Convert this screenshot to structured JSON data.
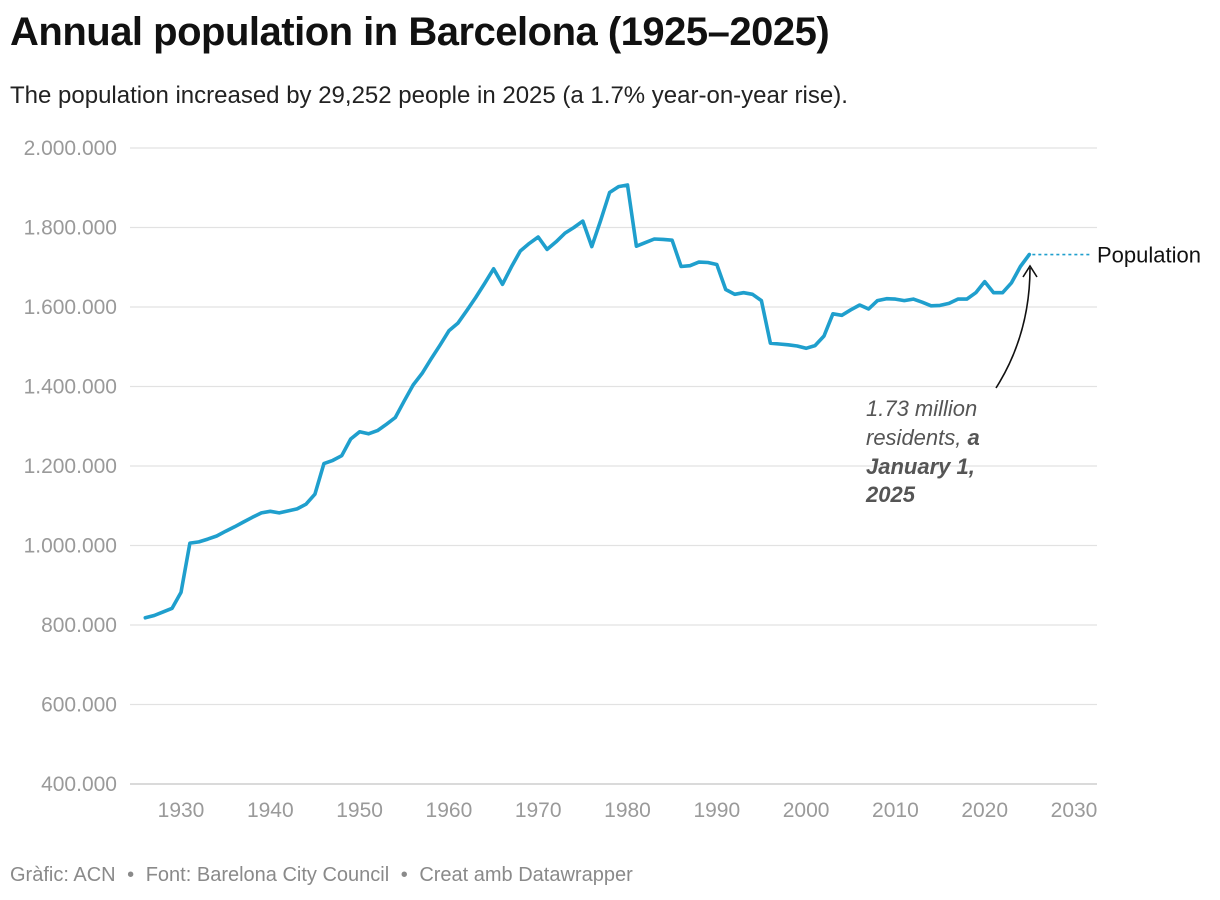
{
  "title": "Annual population in Barcelona (1925–2025)",
  "subtitle": "The population increased by 29,252 people in 2025 (a 1.7% year-on-year rise).",
  "footer": {
    "credit": "Gràfic: ACN",
    "source": "Font: Barelona City Council",
    "tool": "Creat amb Datawrapper",
    "separator": "•"
  },
  "annotation": {
    "line1": "1.73 million",
    "line2_normal": "residents, ",
    "line2_bold": "a",
    "line3": "January 1,",
    "line4": "2025"
  },
  "colors": {
    "line": "#1f9fcd",
    "grid": "#e2e2e2",
    "axis": "#d0d0d0"
  },
  "chart_data": {
    "type": "line",
    "title": "Annual population in Barcelona (1925–2025)",
    "xlim": [
      1923,
      2030
    ],
    "ylim": [
      400000,
      2000000
    ],
    "x_ticks": [
      1930,
      1940,
      1950,
      1960,
      1970,
      1980,
      1990,
      2000,
      2010,
      2020,
      2030
    ],
    "y_ticks": [
      400000,
      600000,
      800000,
      1000000,
      1200000,
      1400000,
      1600000,
      1800000,
      2000000
    ],
    "y_tick_labels": [
      "400.000",
      "600.000",
      "800.000",
      "1.000.000",
      "1.200.000",
      "1.400.000",
      "1.600.000",
      "1.800.000",
      "2.000.000"
    ],
    "grid": true,
    "series": [
      {
        "name": "Population",
        "x": [
          1926,
          1927,
          1928,
          1929,
          1930,
          1931,
          1932,
          1933,
          1934,
          1935,
          1936,
          1937,
          1938,
          1939,
          1940,
          1941,
          1942,
          1943,
          1944,
          1945,
          1946,
          1947,
          1948,
          1949,
          1950,
          1951,
          1952,
          1953,
          1954,
          1955,
          1956,
          1957,
          1958,
          1959,
          1960,
          1961,
          1962,
          1963,
          1964,
          1965,
          1966,
          1967,
          1968,
          1969,
          1970,
          1971,
          1972,
          1973,
          1974,
          1975,
          1976,
          1977,
          1978,
          1979,
          1980,
          1981,
          1982,
          1983,
          1984,
          1985,
          1986,
          1987,
          1988,
          1989,
          1990,
          1991,
          1992,
          1993,
          1994,
          1995,
          1996,
          1997,
          1998,
          1999,
          2000,
          2001,
          2002,
          2003,
          2004,
          2005,
          2006,
          2007,
          2008,
          2009,
          2010,
          2011,
          2012,
          2013,
          2014,
          2015,
          2016,
          2017,
          2018,
          2019,
          2020,
          2021,
          2022,
          2023,
          2024,
          2025
        ],
        "values": [
          818000,
          824000,
          833000,
          842000,
          882000,
          1006000,
          1009000,
          1016000,
          1024000,
          1036000,
          1047000,
          1059000,
          1071000,
          1082000,
          1086000,
          1082000,
          1087000,
          1092000,
          1104000,
          1129000,
          1206000,
          1214000,
          1226000,
          1268000,
          1286000,
          1281000,
          1289000,
          1305000,
          1322000,
          1364000,
          1404000,
          1433000,
          1469000,
          1504000,
          1540000,
          1559000,
          1591000,
          1624000,
          1659000,
          1696000,
          1657000,
          1701000,
          1741000,
          1760000,
          1776000,
          1745000,
          1764000,
          1786000,
          1800000,
          1816000,
          1752000,
          1818000,
          1888000,
          1903000,
          1907000,
          1753000,
          1762000,
          1771000,
          1770000,
          1768000,
          1702000,
          1704000,
          1713000,
          1712000,
          1707000,
          1644000,
          1632000,
          1636000,
          1632000,
          1616000,
          1509000,
          1507000,
          1505000,
          1502000,
          1496000,
          1503000,
          1527000,
          1583000,
          1579000,
          1593000,
          1605000,
          1595000,
          1616000,
          1621000,
          1620000,
          1616000,
          1620000,
          1612000,
          1603000,
          1604000,
          1609000,
          1620000,
          1620000,
          1636000,
          1664000,
          1636000,
          1636000,
          1661000,
          1702000,
          1732000
        ]
      }
    ]
  }
}
